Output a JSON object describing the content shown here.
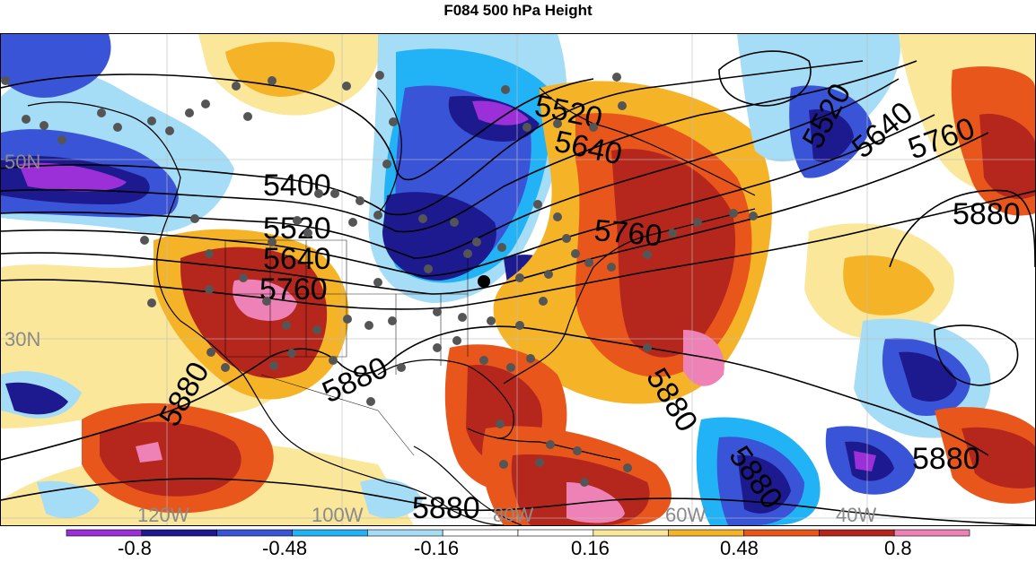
{
  "title": "F084 500 hPa Height",
  "colors": {
    "water_bg": "#ffffff",
    "coast": "#000000",
    "contour": "#000000",
    "station": "#555555"
  },
  "lat_labels": [
    "50N",
    "30N"
  ],
  "lon_labels": [
    "120W",
    "100W",
    "80W",
    "60W",
    "40W"
  ],
  "contours": {
    "labels": [
      "5400",
      "5520",
      "5520",
      "5520",
      "5640",
      "5640",
      "5640",
      "5760",
      "5760",
      "5760",
      "5880",
      "5880",
      "5880",
      "5880",
      "5880",
      "5880",
      "5880"
    ]
  },
  "colorbar": {
    "colors": [
      "#9b30d8",
      "#1c1a8e",
      "#3a54d8",
      "#21b3f5",
      "#a5dcf6",
      "#ffffff",
      "#ffffff",
      "#fbe79a",
      "#f5b428",
      "#e8561c",
      "#b5271c",
      "#ee82b6"
    ],
    "tick_labels": [
      "-0.8",
      "-0.48",
      "-0.16",
      "0.16",
      "0.48",
      "0.8"
    ]
  }
}
